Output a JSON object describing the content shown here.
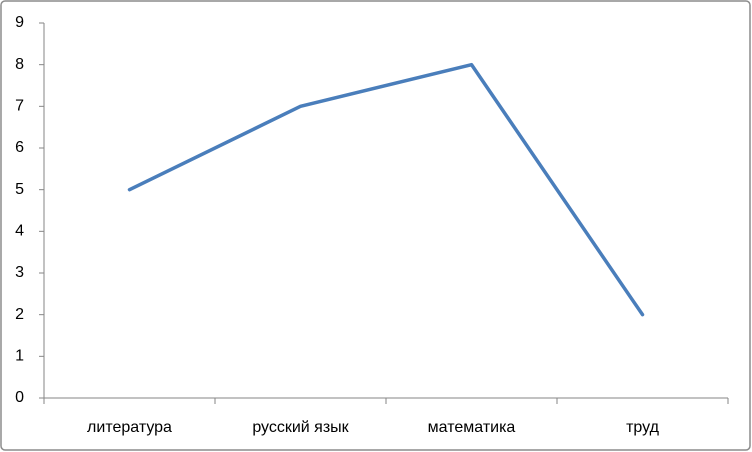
{
  "chart_data": {
    "type": "line",
    "categories": [
      "литература",
      "русский язык",
      "математика",
      "труд"
    ],
    "values": [
      5,
      7,
      8,
      2
    ],
    "color": "#4a7ebb",
    "ylim": [
      0,
      9
    ],
    "yticks": [
      0,
      1,
      2,
      3,
      4,
      5,
      6,
      7,
      8,
      9
    ],
    "grid": false
  }
}
